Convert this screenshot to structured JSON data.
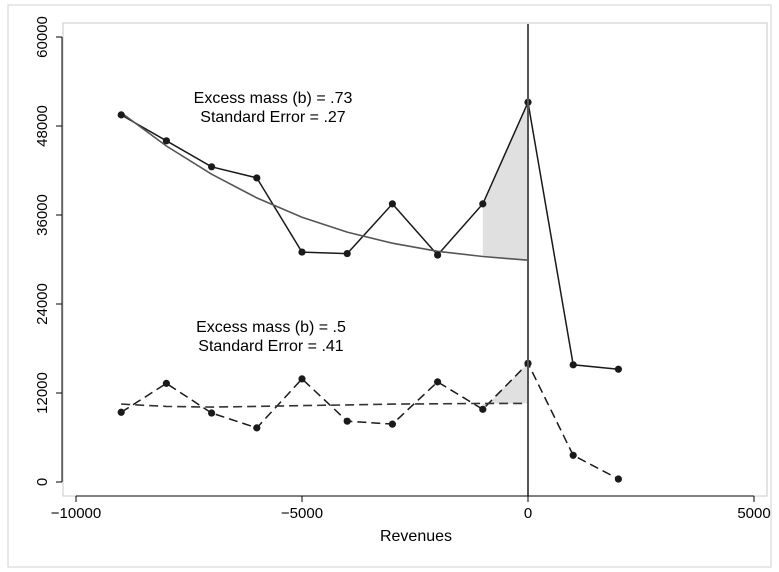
{
  "chart_data": {
    "type": "line",
    "title": "",
    "xlabel": "Revenues",
    "ylabel": "",
    "xlim": [
      -10000,
      5000
    ],
    "ylim": [
      0,
      60000
    ],
    "xticks": [
      -10000,
      -5000,
      0,
      5000
    ],
    "xtick_labels": [
      "−10000",
      "−5000",
      "0",
      "5000"
    ],
    "yticks": [
      0,
      12000,
      24000,
      36000,
      48000,
      60000
    ],
    "ytick_labels": [
      "0",
      "12000",
      "24000",
      "36000",
      "48000",
      "60000"
    ],
    "grid": false,
    "legend": "none",
    "vertical_line_x": 0,
    "series": [
      {
        "style": "solid-markers",
        "color": "#1a1a1a",
        "x": [
          -9000,
          -8000,
          -7000,
          -6000,
          -5000,
          -4000,
          -3000,
          -2000,
          -1000,
          0,
          1000,
          2000
        ],
        "y": [
          49500,
          46000,
          42500,
          41000,
          31000,
          30800,
          37500,
          30600,
          37500,
          51200,
          15800,
          15200
        ]
      },
      {
        "style": "solid-fit",
        "color": "#555555",
        "x": [
          -9000,
          -8000,
          -7000,
          -6000,
          -5000,
          -4000,
          -3000,
          -2000,
          -1000,
          0
        ],
        "y": [
          49800,
          45300,
          41500,
          38300,
          35700,
          33700,
          32200,
          31100,
          30400,
          29900
        ]
      },
      {
        "style": "dashed-markers",
        "color": "#1a1a1a",
        "x": [
          -9000,
          -8000,
          -7000,
          -6000,
          -5000,
          -4000,
          -3000,
          -2000,
          -1000,
          0,
          1000,
          2000
        ],
        "y": [
          9400,
          13300,
          9300,
          7300,
          13900,
          8200,
          7800,
          13500,
          9800,
          16000,
          3600,
          400
        ]
      },
      {
        "style": "dashed-fit",
        "color": "#333333",
        "x": [
          -9000,
          -8000,
          -7000,
          -6000,
          -5000,
          -4000,
          -3000,
          -2000,
          -1000,
          0
        ],
        "y": [
          10500,
          10200,
          10100,
          10200,
          10300,
          10400,
          10500,
          10550,
          10600,
          10600
        ]
      }
    ],
    "shaded_regions": [
      {
        "series_top": 0,
        "series_bottom": 1,
        "x_from": -1000,
        "x_to": 0,
        "color": "#e0e0e0"
      },
      {
        "series_top": 2,
        "series_bottom": 3,
        "x_from": -1000,
        "x_to": 0,
        "color": "#e0e0e0"
      }
    ],
    "annotations": [
      {
        "line1": "Excess mass (b) = .73",
        "line2": "Standard Error = .27"
      },
      {
        "line1": "Excess mass (b) = .5",
        "line2": "Standard Error = .41"
      }
    ]
  }
}
